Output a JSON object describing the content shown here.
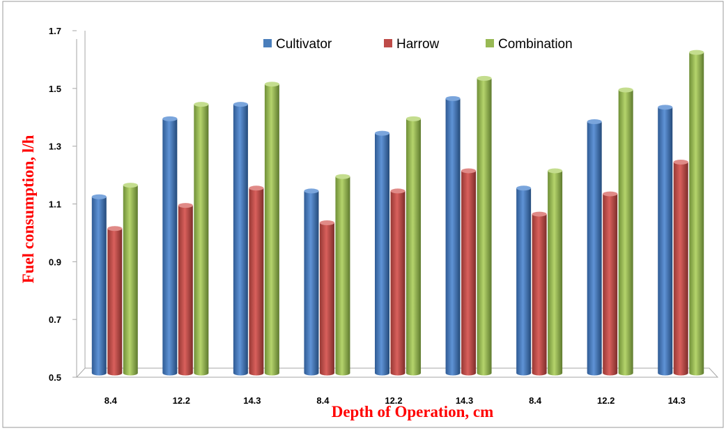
{
  "chart_data": {
    "type": "bar",
    "title": "",
    "xlabel": "Depth of Operation, cm",
    "ylabel": "Fuel consumption,  l/h",
    "ylim": [
      0.5,
      1.7
    ],
    "yticks": [
      "0.5",
      "0.7",
      "0.9",
      "1.1",
      "1.3",
      "1.5",
      "1.7"
    ],
    "categories": [
      "8.4",
      "12.2",
      "14.3",
      "8.4",
      "12.2",
      "14.3",
      "8.4",
      "12.2",
      "14.3"
    ],
    "series": [
      {
        "name": "Cultivator",
        "color": "#4a7ebb",
        "values": [
          1.12,
          1.39,
          1.44,
          1.14,
          1.34,
          1.46,
          1.15,
          1.38,
          1.43
        ]
      },
      {
        "name": "Harrow",
        "color": "#be4b48",
        "values": [
          1.01,
          1.09,
          1.15,
          1.03,
          1.14,
          1.21,
          1.06,
          1.13,
          1.24
        ]
      },
      {
        "name": "Combination",
        "color": "#98b954",
        "values": [
          1.16,
          1.44,
          1.51,
          1.19,
          1.39,
          1.53,
          1.21,
          1.49,
          1.62
        ]
      }
    ],
    "legend_position": "top",
    "grid": false,
    "style": "3d-cylinder"
  }
}
